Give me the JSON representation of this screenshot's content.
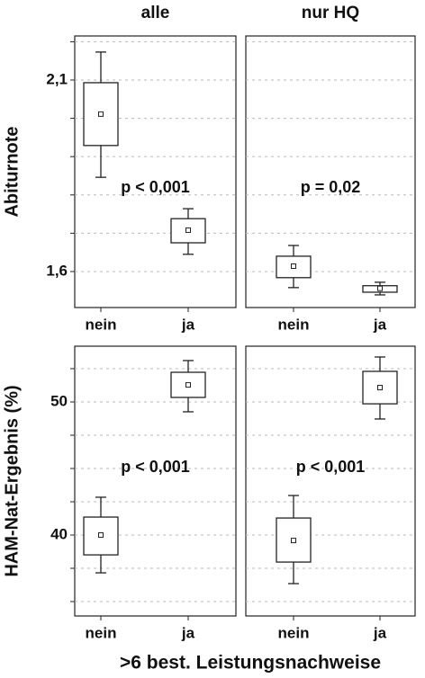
{
  "chart_data": [
    {
      "type": "box",
      "title": "alle",
      "ylabel": "Abiturnote",
      "annotation": "p < 0,001",
      "categories": [
        "nein",
        "ja"
      ],
      "boxes": [
        {
          "whisker_low": 1.846,
          "q1": 1.929,
          "median": 2.011,
          "q3": 2.093,
          "whisker_high": 2.173
        },
        {
          "whisker_low": 1.645,
          "q1": 1.675,
          "median": 1.708,
          "q3": 1.738,
          "whisker_high": 1.764
        }
      ],
      "ylim": [
        1.506,
        2.215
      ],
      "yticks": [
        {
          "value": 1.6,
          "label": "1,6"
        },
        {
          "value": 2.1,
          "label": "2,1"
        }
      ],
      "grid_lines": [
        1.6,
        1.7,
        1.8,
        1.9,
        2.0,
        2.1,
        2.2
      ]
    },
    {
      "type": "box",
      "title": "nur HQ",
      "annotation": "p = 0,02",
      "categories": [
        "nein",
        "ja"
      ],
      "boxes": [
        {
          "whisker_low": 1.558,
          "q1": 1.584,
          "median": 1.614,
          "q3": 1.64,
          "whisker_high": 1.668
        },
        {
          "whisker_low": 1.539,
          "q1": 1.546,
          "median": 1.556,
          "q3": 1.563,
          "whisker_high": 1.572
        }
      ],
      "ylim": [
        1.506,
        2.215
      ],
      "grid_lines": [
        1.6,
        1.7,
        1.8,
        1.9,
        2.0,
        2.1,
        2.2
      ]
    },
    {
      "type": "box",
      "ylabel": "HAM-Nat-Ergebnis (%)",
      "annotation": "p < 0,001",
      "categories": [
        "nein",
        "ja"
      ],
      "boxes": [
        {
          "whisker_low": 37.16,
          "q1": 38.51,
          "median": 40.0,
          "q3": 41.35,
          "whisker_high": 42.84
        },
        {
          "whisker_low": 49.26,
          "q1": 50.34,
          "median": 51.28,
          "q3": 52.23,
          "whisker_high": 53.11
        }
      ],
      "ylim": [
        33.92,
        54.19
      ],
      "yticks": [
        40,
        50
      ],
      "grid_lines": [
        35,
        37.5,
        40,
        42.5,
        45,
        47.5,
        50,
        52.5
      ]
    },
    {
      "type": "box",
      "annotation": "p < 0,001",
      "categories": [
        "nein",
        "ja"
      ],
      "boxes": [
        {
          "whisker_low": 36.35,
          "q1": 37.97,
          "median": 39.59,
          "q3": 41.28,
          "whisker_high": 42.97
        },
        {
          "whisker_low": 48.72,
          "q1": 49.86,
          "median": 51.08,
          "q3": 52.3,
          "whisker_high": 53.38
        }
      ],
      "ylim": [
        33.92,
        54.19
      ],
      "grid_lines": [
        35,
        37.5,
        40,
        42.5,
        45,
        47.5,
        50,
        52.5
      ]
    }
  ],
  "xlabel": ">6 best. Leistungsnachweise"
}
